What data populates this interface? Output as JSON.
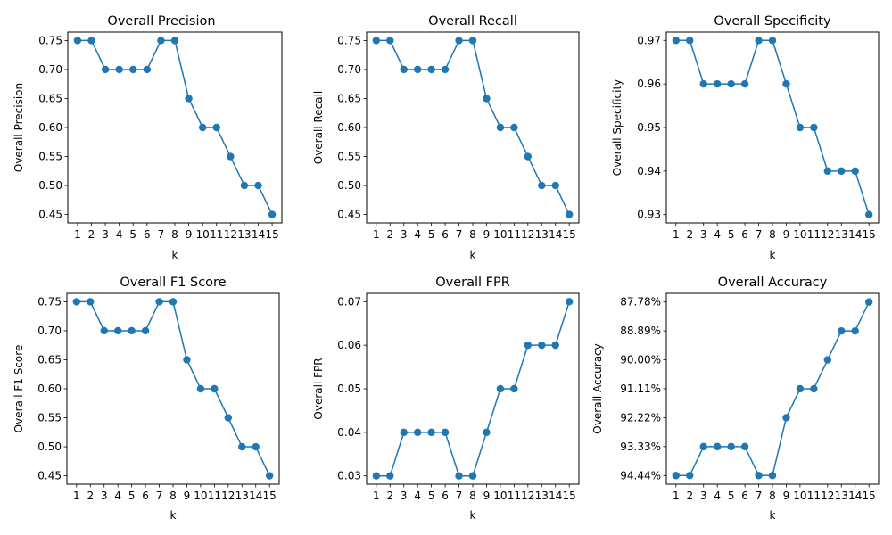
{
  "figure": {
    "background": "#ffffff",
    "line_color": "#1f77b4"
  },
  "chart_data": [
    {
      "type": "line",
      "title": "Overall Precision",
      "xlabel": "k",
      "ylabel": "Overall Precision",
      "x": [
        1,
        2,
        3,
        4,
        5,
        6,
        7,
        8,
        9,
        10,
        11,
        12,
        13,
        14,
        15
      ],
      "values": [
        0.75,
        0.75,
        0.7,
        0.7,
        0.7,
        0.7,
        0.75,
        0.75,
        0.65,
        0.6,
        0.6,
        0.55,
        0.5,
        0.5,
        0.45
      ],
      "ylim": [
        0.4355,
        0.7645
      ],
      "yticks": [
        0.45,
        0.5,
        0.55,
        0.6,
        0.65,
        0.7,
        0.75
      ],
      "ytick_labels": [
        "0.45",
        "0.50",
        "0.55",
        "0.60",
        "0.65",
        "0.70",
        "0.75"
      ],
      "marker": "circle",
      "grid": false
    },
    {
      "type": "line",
      "title": "Overall Recall",
      "xlabel": "k",
      "ylabel": "Overall Recall",
      "x": [
        1,
        2,
        3,
        4,
        5,
        6,
        7,
        8,
        9,
        10,
        11,
        12,
        13,
        14,
        15
      ],
      "values": [
        0.75,
        0.75,
        0.7,
        0.7,
        0.7,
        0.7,
        0.75,
        0.75,
        0.65,
        0.6,
        0.6,
        0.55,
        0.5,
        0.5,
        0.45
      ],
      "ylim": [
        0.4355,
        0.7645
      ],
      "yticks": [
        0.45,
        0.5,
        0.55,
        0.6,
        0.65,
        0.7,
        0.75
      ],
      "ytick_labels": [
        "0.45",
        "0.50",
        "0.55",
        "0.60",
        "0.65",
        "0.70",
        "0.75"
      ],
      "marker": "circle",
      "grid": false
    },
    {
      "type": "line",
      "title": "Overall Specificity",
      "xlabel": "k",
      "ylabel": "Overall Specificity",
      "x": [
        1,
        2,
        3,
        4,
        5,
        6,
        7,
        8,
        9,
        10,
        11,
        12,
        13,
        14,
        15
      ],
      "values": [
        0.97,
        0.97,
        0.96,
        0.96,
        0.96,
        0.96,
        0.97,
        0.97,
        0.96,
        0.95,
        0.95,
        0.94,
        0.94,
        0.94,
        0.93
      ],
      "ylim": [
        0.9281,
        0.9719
      ],
      "yticks": [
        0.93,
        0.94,
        0.95,
        0.96,
        0.97
      ],
      "ytick_labels": [
        "0.93",
        "0.94",
        "0.95",
        "0.96",
        "0.97"
      ],
      "marker": "circle",
      "grid": false
    },
    {
      "type": "line",
      "title": "Overall F1 Score",
      "xlabel": "k",
      "ylabel": "Overall F1 Score",
      "x": [
        1,
        2,
        3,
        4,
        5,
        6,
        7,
        8,
        9,
        10,
        11,
        12,
        13,
        14,
        15
      ],
      "values": [
        0.75,
        0.75,
        0.7,
        0.7,
        0.7,
        0.7,
        0.75,
        0.75,
        0.65,
        0.6,
        0.6,
        0.55,
        0.5,
        0.5,
        0.45
      ],
      "ylim": [
        0.4355,
        0.7645
      ],
      "yticks": [
        0.45,
        0.5,
        0.55,
        0.6,
        0.65,
        0.7,
        0.75
      ],
      "ytick_labels": [
        "0.45",
        "0.50",
        "0.55",
        "0.60",
        "0.65",
        "0.70",
        "0.75"
      ],
      "marker": "circle",
      "grid": false
    },
    {
      "type": "line",
      "title": "Overall FPR",
      "xlabel": "k",
      "ylabel": "Overall FPR",
      "x": [
        1,
        2,
        3,
        4,
        5,
        6,
        7,
        8,
        9,
        10,
        11,
        12,
        13,
        14,
        15
      ],
      "values": [
        0.03,
        0.03,
        0.04,
        0.04,
        0.04,
        0.04,
        0.03,
        0.03,
        0.04,
        0.05,
        0.05,
        0.06,
        0.06,
        0.06,
        0.07
      ],
      "ylim": [
        0.0281,
        0.0719
      ],
      "yticks": [
        0.03,
        0.04,
        0.05,
        0.06,
        0.07
      ],
      "ytick_labels": [
        "0.03",
        "0.04",
        "0.05",
        "0.06",
        "0.07"
      ],
      "marker": "circle",
      "grid": false
    },
    {
      "type": "line",
      "title": "Overall Accuracy",
      "xlabel": "k",
      "ylabel": "Overall Accuracy",
      "x": [
        1,
        2,
        3,
        4,
        5,
        6,
        7,
        8,
        9,
        10,
        11,
        12,
        13,
        14,
        15
      ],
      "values": [
        "94.44%",
        "94.44%",
        "93.33%",
        "93.33%",
        "93.33%",
        "93.33%",
        "94.44%",
        "94.44%",
        "92.22%",
        "91.11%",
        "91.11%",
        "90.00%",
        "88.89%",
        "88.89%",
        "87.78%"
      ],
      "categorical_y": true,
      "yticks": [
        "94.44%",
        "93.33%",
        "92.22%",
        "91.11%",
        "90.00%",
        "88.89%",
        "87.78%"
      ],
      "ytick_labels": [
        "94.44%",
        "93.33%",
        "92.22%",
        "91.11%",
        "90.00%",
        "88.89%",
        "87.78%"
      ],
      "ylim": [
        -0.3,
        6.3
      ],
      "marker": "circle",
      "grid": false
    }
  ]
}
